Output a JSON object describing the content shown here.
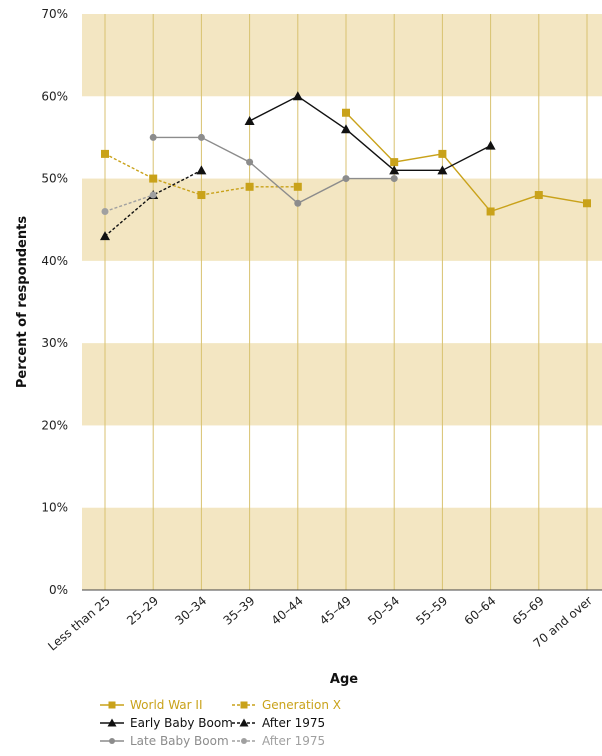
{
  "chart_data": {
    "type": "line",
    "xlabel": "Age",
    "ylabel": "Percent of respondents",
    "categories": [
      "Less than 25",
      "25–29",
      "30–34",
      "35–39",
      "40–44",
      "45–49",
      "50–54",
      "55–59",
      "60–64",
      "65–69",
      "70 and over"
    ],
    "y_ticks": [
      "0%",
      "10%",
      "20%",
      "30%",
      "40%",
      "50%",
      "60%",
      "70%"
    ],
    "ylim": [
      0,
      70
    ],
    "band_color": "#f3e6c2",
    "gridline_color": "#d8c270",
    "series": [
      {
        "name": "World War II",
        "color": "#c9a21a",
        "marker": "square",
        "dash": false,
        "values": [
          null,
          null,
          null,
          null,
          null,
          58,
          52,
          53,
          46,
          48,
          47
        ]
      },
      {
        "name": "Generation X",
        "color": "#c9a21a",
        "marker": "square",
        "dash": true,
        "values": [
          53,
          50,
          48,
          49,
          49,
          null,
          null,
          null,
          null,
          null,
          null
        ]
      },
      {
        "name": "Early Baby Boom",
        "color": "#111111",
        "marker": "triangle",
        "dash": false,
        "values": [
          null,
          null,
          null,
          57,
          60,
          56,
          51,
          51,
          54,
          null,
          null
        ]
      },
      {
        "name": "After 1975",
        "color": "#111111",
        "marker": "triangle",
        "dash": true,
        "values": [
          43,
          48,
          51,
          null,
          null,
          null,
          null,
          null,
          null,
          null,
          null
        ]
      },
      {
        "name": "Late Baby Boom",
        "color": "#8c8c8c",
        "marker": "circle",
        "dash": false,
        "values": [
          null,
          55,
          55,
          52,
          47,
          50,
          50,
          null,
          null,
          null,
          null
        ]
      },
      {
        "name": "After 1975",
        "color": "#a0a0a0",
        "marker": "circle",
        "dash": true,
        "values": [
          46,
          48,
          null,
          null,
          null,
          null,
          null,
          null,
          null,
          null,
          null
        ]
      }
    ],
    "legend_position": "bottom"
  }
}
